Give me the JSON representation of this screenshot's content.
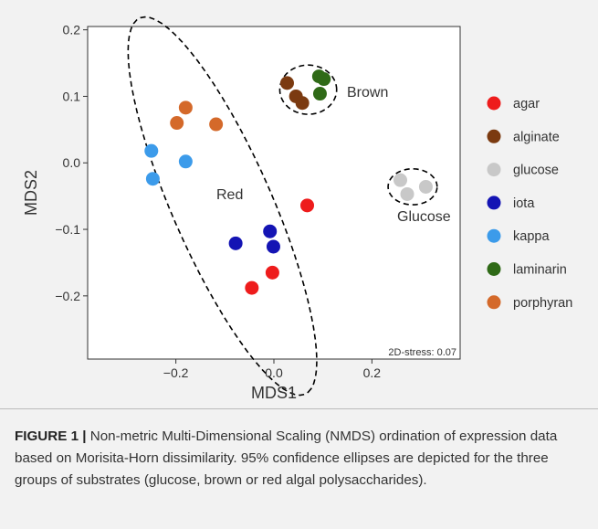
{
  "chart_data": {
    "type": "scatter",
    "xlabel": "MDS1",
    "ylabel": "MDS2",
    "xlim": [
      -0.38,
      0.38
    ],
    "ylim": [
      -0.295,
      0.205
    ],
    "x_ticks": [
      -0.2,
      0.0,
      0.2
    ],
    "x_tick_labels": [
      "−0.2",
      "0.0",
      "0.2"
    ],
    "y_ticks": [
      0.2,
      0.1,
      0.0,
      -0.1,
      -0.2
    ],
    "y_tick_labels": [
      "0.2",
      "0.1",
      "0.0",
      "−0.1",
      "−0.2"
    ],
    "grid": false,
    "legend_position": "right",
    "series": [
      {
        "name": "agar",
        "color": "#ee1c1c",
        "points": [
          [
            0.068,
            -0.064
          ],
          [
            -0.003,
            -0.165
          ],
          [
            -0.045,
            -0.188
          ]
        ]
      },
      {
        "name": "alginate",
        "color": "#7b3a10",
        "points": [
          [
            0.027,
            0.12
          ],
          [
            0.045,
            0.1
          ],
          [
            0.058,
            0.09
          ]
        ]
      },
      {
        "name": "glucose",
        "color": "#c8c8c8",
        "points": [
          [
            0.258,
            -0.026
          ],
          [
            0.272,
            -0.047
          ],
          [
            0.31,
            -0.036
          ]
        ]
      },
      {
        "name": "iota",
        "color": "#1414b4",
        "points": [
          [
            -0.078,
            -0.121
          ],
          [
            -0.008,
            -0.103
          ],
          [
            -0.001,
            -0.126
          ]
        ]
      },
      {
        "name": "kappa",
        "color": "#3c9bea",
        "points": [
          [
            -0.25,
            0.018
          ],
          [
            -0.247,
            -0.024
          ],
          [
            -0.18,
            0.002
          ]
        ]
      },
      {
        "name": "laminarin",
        "color": "#2f6a17",
        "points": [
          [
            0.092,
            0.13
          ],
          [
            0.102,
            0.126
          ],
          [
            0.094,
            0.104
          ]
        ]
      },
      {
        "name": "porphyran",
        "color": "#d4692a",
        "points": [
          [
            -0.18,
            0.083
          ],
          [
            -0.198,
            0.06
          ],
          [
            -0.118,
            0.058
          ]
        ]
      }
    ],
    "ellipses": [
      {
        "label": "Red",
        "center": [
          -0.105,
          -0.065
        ],
        "semi_axes": [
          0.33,
          0.095
        ],
        "angle_deg": -58
      },
      {
        "label": "Brown",
        "center": [
          0.07,
          0.11
        ],
        "semi_axes": [
          0.058,
          0.037
        ],
        "angle_deg": 0
      },
      {
        "label": "Glucose",
        "center": [
          0.283,
          -0.036
        ],
        "semi_axes": [
          0.05,
          0.027
        ],
        "angle_deg": 0
      }
    ],
    "ellipse_labels": {
      "red": "Red",
      "brown": "Brown",
      "glucose": "Glucose"
    },
    "stress_annotation": "2D-stress: 0.07"
  },
  "caption": {
    "label": "FIGURE 1 |",
    "text": "Non-metric Multi-Dimensional Scaling (NMDS) ordination of expression data based on Morisita-Horn dissimilarity. 95% confidence ellipses are depicted for the three groups of substrates (glucose, brown or red algal polysaccharides)."
  }
}
